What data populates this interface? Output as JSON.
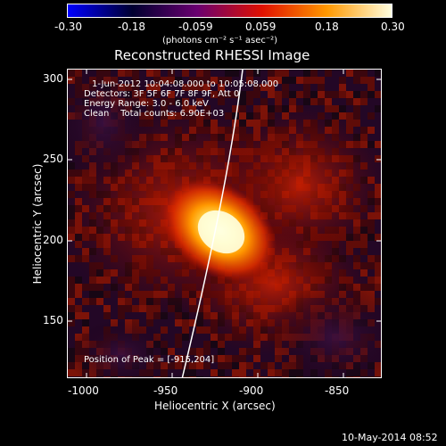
{
  "colorbar": {
    "tick_labels": [
      "-0.30",
      "-0.18",
      "-0.059",
      "0.059",
      "0.18",
      "0.30"
    ],
    "units_label": "(photons cm⁻² s⁻¹ asec⁻²)",
    "colors": [
      "#0000ff",
      "#000030",
      "#6a0070",
      "#e01000",
      "#ff9800",
      "#ffffe0"
    ]
  },
  "title": "Reconstructed RHESSI Image",
  "info": {
    "time_range": "1-Jun-2012 10:04:08.000 to 10:05:08.000",
    "detectors": "Detectors: 3F 5F 6F 7F 8F 9F, Att 0",
    "energy_range": "Energy Range: 3.0 - 6.0 keV",
    "clean_counts": "Clean    Total counts: 6.90E+03"
  },
  "peak_label": "Position of Peak = [-915,204]",
  "axes": {
    "x_label": "Heliocentric X (arcsec)",
    "y_label": "Heliocentric Y (arcsec)",
    "x_ticks": [
      "-1000",
      "-950",
      "-900",
      "-850"
    ],
    "y_ticks": [
      "300",
      "250",
      "200",
      "150"
    ]
  },
  "timestamp": "10-May-2014 08:52"
}
